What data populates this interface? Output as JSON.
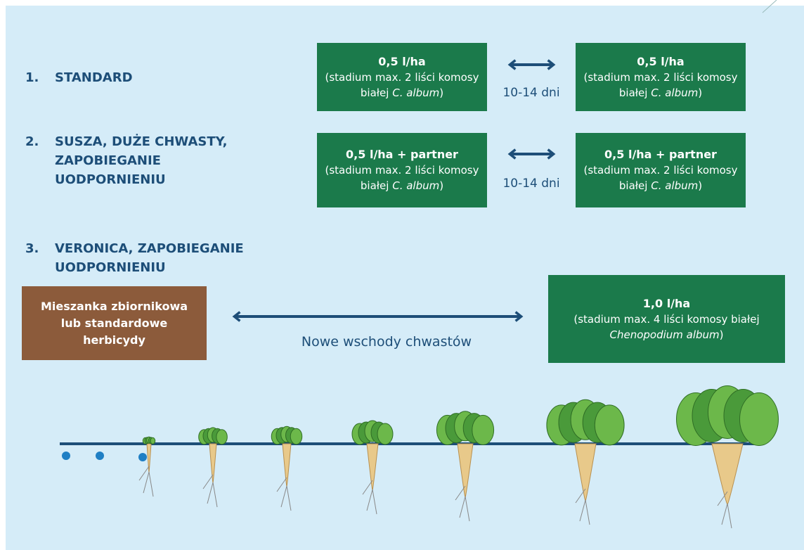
{
  "scenarios": [
    {
      "number": "1.",
      "label": "STANDARD"
    },
    {
      "number": "2.",
      "label": "SUSZA, DUŻE CHWASTY, ZAPOBIEGANIE UODPORNIENIU"
    },
    {
      "number": "3.",
      "label": "VERONICA, ZAPOBIEGANIE UODPORNIENIU"
    }
  ],
  "row1": {
    "left": {
      "dose": "0,5 l/ha",
      "text": "(stadium max. 2 liści komosy białej ",
      "species": "C. album",
      "close": ")"
    },
    "interval": "10-14 dni",
    "right": {
      "dose": "0,5 l/ha",
      "text": "(stadium max. 2 liści komosy białej ",
      "species": "C. album",
      "close": ")"
    }
  },
  "row2": {
    "left": {
      "dose": "0,5 l/ha + partner",
      "text": "(stadium max. 2 liści komosy białej ",
      "species": "C. album",
      "close": ")"
    },
    "interval": "10-14 dni",
    "right": {
      "dose": "0,5 l/ha + partner",
      "text": "(stadium max. 2 liści komosy białej ",
      "species": "C. album",
      "close": ")"
    }
  },
  "row3": {
    "left": "Mieszanka zbiornikowa lub standardowe herbicydy",
    "label": "Nowe wschody chwastów",
    "right": {
      "dose": "1,0 l/ha",
      "text": "(stadium max. 4 liści komosy białej ",
      "species": "Chenopodium album",
      "close": ")"
    }
  }
}
